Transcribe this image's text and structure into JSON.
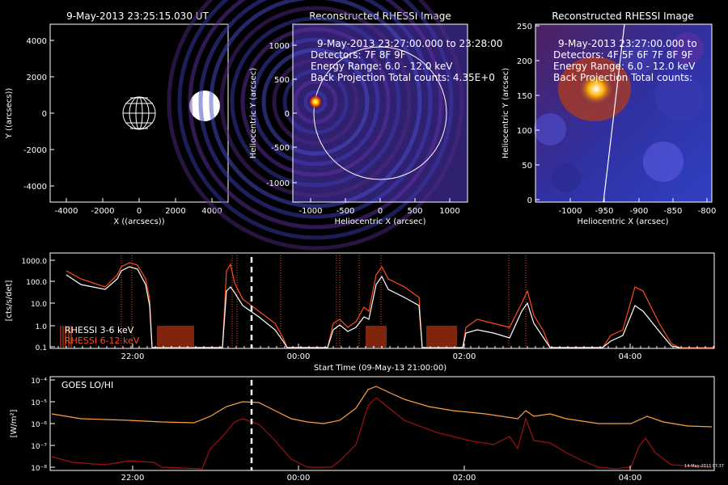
{
  "panel1": {
    "title": "9-May-2013 23:25:15.030 UT",
    "xlabel": "X ((arcsecs))",
    "ylabel": "Y ((arcsecs))",
    "ticks": [
      "-4000",
      "-2000",
      "0",
      "2000",
      "4000"
    ]
  },
  "panel2": {
    "title": "Reconstructed RHESSI Image",
    "info": [
      "9-May-2013 23:27:00.000 to 23:28:00",
      "Detectors: 7F 8F 9F",
      "Energy Range: 6.0 - 12.0 keV",
      "Back Projection     Total counts: 4.35E+0"
    ],
    "xlabel": "Heliocentric X (arcsec)",
    "ylabel": "Heliocentric Y (arcsec)",
    "xticks": [
      "-1000",
      "-500",
      "0",
      "500",
      "1000"
    ],
    "yticks": [
      "1000",
      "500",
      "0",
      "-500",
      "-1000"
    ]
  },
  "panel3": {
    "title": "Reconstructed RHESSI Image",
    "info": [
      "9-May-2013 23:27:00.000 to",
      "Detectors: 4F 5F 6F 7F 8F 9F",
      "Energy Range: 6.0 - 12.0 keV",
      "Back Projection     Total counts:"
    ],
    "xlabel": "Heliocentric X (arcsec)",
    "ylabel": "Heliocentric Y (arcsec)",
    "xticks": [
      "-1000",
      "-950",
      "-900",
      "-850",
      "-800"
    ],
    "yticks": [
      "250",
      "200",
      "150",
      "100",
      "50",
      "0"
    ]
  },
  "panel4": {
    "ylabel": "[cts/s/det]",
    "yticks": [
      "1000.0",
      "100.0",
      "10.0",
      "1.0",
      "0.1"
    ],
    "xticks": [
      "22:00",
      "00:00",
      "02:00",
      "04:00"
    ],
    "xlabel": "Start Time (09-May-13 21:00:00)",
    "legend": [
      "RHESSI  3-6 keV",
      "RHESSI  6-12 keV"
    ]
  },
  "panel5": {
    "ylabel": "[W/m²]",
    "label": "GOES LO/HI",
    "xticks": [
      "22:00",
      "00:00",
      "02:00",
      "04:00"
    ],
    "xlabel": "Start Time (09-May-13 21:00:00)",
    "stamp": "14-May-2013 07:37"
  },
  "chart_data": [
    {
      "type": "line",
      "title": "RHESSI 3-6 keV",
      "x": [
        "21:20",
        "21:50",
        "22:10",
        "22:20",
        "23:00",
        "23:10",
        "23:30",
        "23:50",
        "00:40",
        "00:55",
        "01:05",
        "01:25",
        "01:35",
        "01:55",
        "02:15",
        "02:40",
        "02:50",
        "03:50",
        "04:00",
        "04:10",
        "04:20"
      ],
      "values": [
        300,
        150,
        400,
        60,
        500,
        80,
        10,
        1.5,
        1,
        3,
        5,
        500,
        20,
        4,
        0.7,
        10,
        0.8,
        0.4,
        20,
        2,
        0.3
      ]
    },
    {
      "type": "line",
      "title": "RHESSI 6-12 keV",
      "x": [
        "21:20",
        "21:50",
        "22:10",
        "22:20",
        "23:00",
        "23:10",
        "23:30",
        "23:50",
        "00:40",
        "00:55",
        "01:05",
        "01:25",
        "01:35",
        "01:55",
        "02:15",
        "02:40",
        "02:50",
        "03:50",
        "04:00",
        "04:10",
        "04:20"
      ],
      "values": [
        400,
        200,
        500,
        100,
        600,
        120,
        20,
        2,
        2,
        5,
        8,
        600,
        30,
        6,
        1,
        15,
        1,
        0.5,
        30,
        3,
        0.4
      ]
    },
    {
      "type": "line",
      "title": "GOES LO/HI",
      "ylim": [
        "1e-8",
        "1e-4"
      ]
    }
  ]
}
